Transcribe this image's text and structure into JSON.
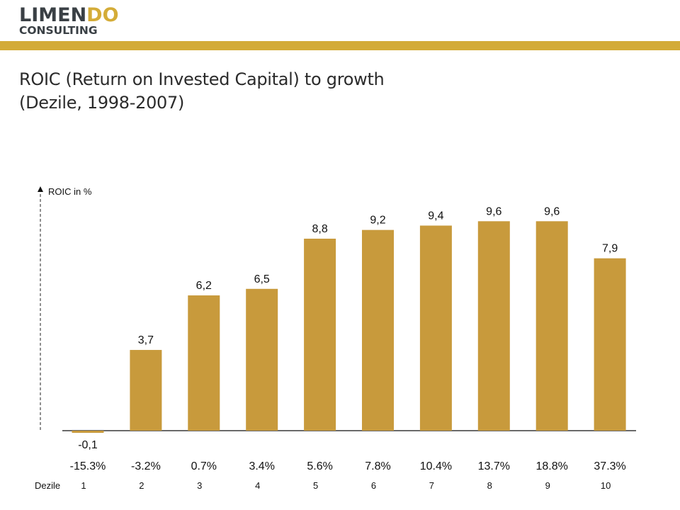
{
  "header": {
    "logo_primary_a": "LIMEN",
    "logo_primary_b": "DO",
    "logo_secondary": "CONSULTING",
    "brand_color": "#d3ab38"
  },
  "title_line1": "ROIC (Return on Invested Capital) to growth",
  "title_line2": "(Dezile, 1998-2007)",
  "chart_data": {
    "type": "bar",
    "title": "ROIC (Return on Invested Capital) to growth (Dezile, 1998-2007)",
    "ylabel": "ROIC in %",
    "xlabel": "Dezile",
    "categories": [
      "1",
      "2",
      "3",
      "4",
      "5",
      "6",
      "7",
      "8",
      "9",
      "10"
    ],
    "growth_labels": [
      "-15.3%",
      "-3.2%",
      "0.7%",
      "3.4%",
      "5.6%",
      "7.8%",
      "10.4%",
      "13.7%",
      "18.8%",
      "37.3%"
    ],
    "values": [
      -0.1,
      3.7,
      6.2,
      6.5,
      8.8,
      9.2,
      9.4,
      9.6,
      9.6,
      7.9
    ],
    "value_labels": [
      "-0,1",
      "3,7",
      "6,2",
      "6,5",
      "8,8",
      "9,2",
      "9,4",
      "9,6",
      "9,6",
      "7,9"
    ],
    "ylim": [
      0,
      10.5
    ],
    "grid": false,
    "bar_color": "#c89a3c"
  }
}
